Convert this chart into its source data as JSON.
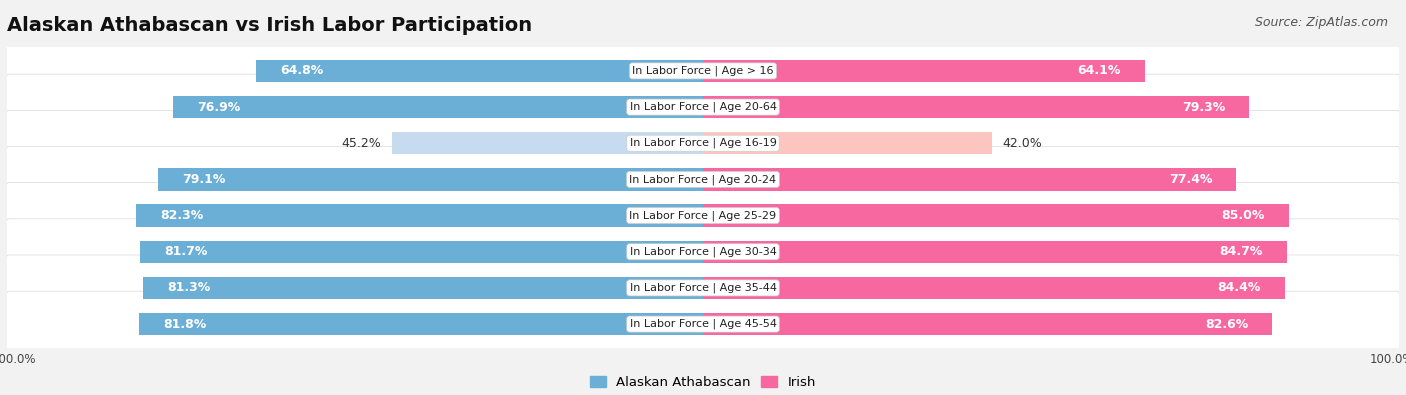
{
  "title": "Alaskan Athabascan vs Irish Labor Participation",
  "source": "Source: ZipAtlas.com",
  "categories": [
    "In Labor Force | Age > 16",
    "In Labor Force | Age 20-64",
    "In Labor Force | Age 16-19",
    "In Labor Force | Age 20-24",
    "In Labor Force | Age 25-29",
    "In Labor Force | Age 30-34",
    "In Labor Force | Age 35-44",
    "In Labor Force | Age 45-54"
  ],
  "alaskan_values": [
    64.8,
    76.9,
    45.2,
    79.1,
    82.3,
    81.7,
    81.3,
    81.8
  ],
  "irish_values": [
    64.1,
    79.3,
    42.0,
    77.4,
    85.0,
    84.7,
    84.4,
    82.6
  ],
  "alaskan_color": "#6baed6",
  "alaskan_color_light": "#c6dbef",
  "irish_color": "#f768a1",
  "irish_color_light": "#fcc5c0",
  "bar_height": 0.62,
  "background_color": "#f2f2f2",
  "row_bg_color": "#ffffff",
  "max_value": 100.0,
  "label_fontsize": 9.0,
  "title_fontsize": 14,
  "source_fontsize": 9,
  "legend_fontsize": 9.5,
  "axis_label_fontsize": 8.5,
  "category_fontsize": 8.0
}
